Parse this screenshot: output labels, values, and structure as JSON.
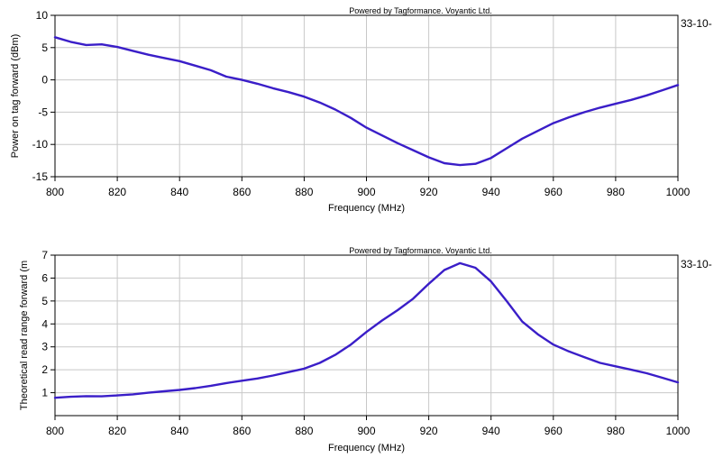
{
  "colors": {
    "line": "#3a1ec8",
    "grid": "#c8c8c8",
    "frame": "#000000"
  },
  "chart_data": [
    {
      "type": "line",
      "credit": "Powered by Tagformance. Voyantic Ltd.",
      "date": "33-10-",
      "xlabel": "Frequency (MHz)",
      "ylabel": "Power on tag forward (dBm)",
      "xlim": [
        800,
        1000
      ],
      "ylim": [
        -15,
        10
      ],
      "xticks": [
        800,
        820,
        840,
        860,
        880,
        900,
        920,
        940,
        960,
        980,
        1000
      ],
      "yticks": [
        -15,
        -10,
        -5,
        0,
        5,
        10
      ],
      "grid": true,
      "series": [
        {
          "x": [
            800,
            805,
            810,
            815,
            820,
            825,
            830,
            835,
            840,
            845,
            850,
            855,
            860,
            865,
            870,
            875,
            880,
            885,
            890,
            895,
            900,
            905,
            910,
            915,
            920,
            925,
            930,
            935,
            940,
            945,
            950,
            955,
            960,
            965,
            970,
            975,
            980,
            985,
            990,
            995,
            1000
          ],
          "y": [
            6.6,
            5.9,
            5.4,
            5.5,
            5.1,
            4.5,
            3.9,
            3.4,
            2.9,
            2.2,
            1.5,
            0.5,
            0.0,
            -0.6,
            -1.3,
            -1.9,
            -2.6,
            -3.5,
            -4.6,
            -5.9,
            -7.4,
            -8.6,
            -9.8,
            -10.9,
            -12.0,
            -12.9,
            -13.2,
            -13.0,
            -12.1,
            -10.6,
            -9.1,
            -7.9,
            -6.7,
            -5.8,
            -5.0,
            -4.3,
            -3.7,
            -3.1,
            -2.4,
            -1.6,
            -0.8
          ]
        }
      ]
    },
    {
      "type": "line",
      "credit": "Powered by Tagformance. Voyantic Ltd.",
      "date": "33-10-",
      "xlabel": "Frequency (MHz)",
      "ylabel": "Theoretical read range forward (m",
      "xlim": [
        800,
        1000
      ],
      "ylim": [
        0,
        7
      ],
      "xticks": [
        800,
        820,
        840,
        860,
        880,
        900,
        920,
        940,
        960,
        980,
        1000
      ],
      "yticks": [
        1,
        2,
        3,
        4,
        5,
        6,
        7
      ],
      "grid": true,
      "series": [
        {
          "x": [
            800,
            805,
            810,
            815,
            820,
            825,
            830,
            835,
            840,
            845,
            850,
            855,
            860,
            865,
            870,
            875,
            880,
            885,
            890,
            895,
            900,
            905,
            910,
            915,
            920,
            925,
            930,
            935,
            940,
            945,
            950,
            955,
            960,
            965,
            970,
            975,
            980,
            985,
            990,
            995,
            1000
          ],
          "y": [
            0.78,
            0.82,
            0.85,
            0.84,
            0.88,
            0.93,
            1.0,
            1.06,
            1.12,
            1.2,
            1.3,
            1.42,
            1.52,
            1.62,
            1.75,
            1.9,
            2.05,
            2.3,
            2.65,
            3.1,
            3.65,
            4.15,
            4.6,
            5.1,
            5.75,
            6.35,
            6.65,
            6.45,
            5.85,
            5.0,
            4.1,
            3.55,
            3.1,
            2.8,
            2.55,
            2.3,
            2.15,
            2.0,
            1.85,
            1.65,
            1.45
          ]
        }
      ]
    }
  ]
}
